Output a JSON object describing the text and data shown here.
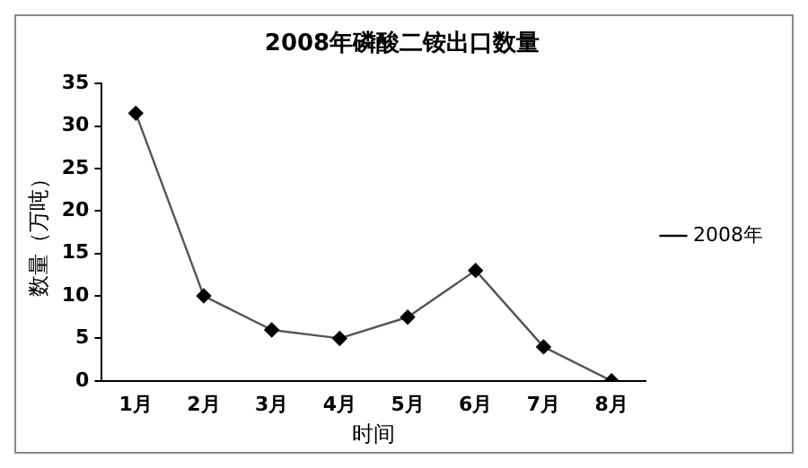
{
  "chart_data": {
    "type": "line",
    "title": "2008年磷酸二铵出口数量",
    "xlabel": "时间",
    "ylabel": "数量（万吨）",
    "categories": [
      "1月",
      "2月",
      "3月",
      "4月",
      "5月",
      "6月",
      "7月",
      "8月"
    ],
    "series": [
      {
        "name": "2008年",
        "color": "#000000",
        "values": [
          31.5,
          10,
          6,
          5,
          7.5,
          13,
          4,
          0
        ]
      }
    ],
    "ylim": [
      0,
      35
    ],
    "yticks": [
      0,
      5,
      10,
      15,
      20,
      25,
      30,
      35
    ],
    "grid": false,
    "legend": "right",
    "marker": "diamond",
    "line_style": "solid"
  }
}
